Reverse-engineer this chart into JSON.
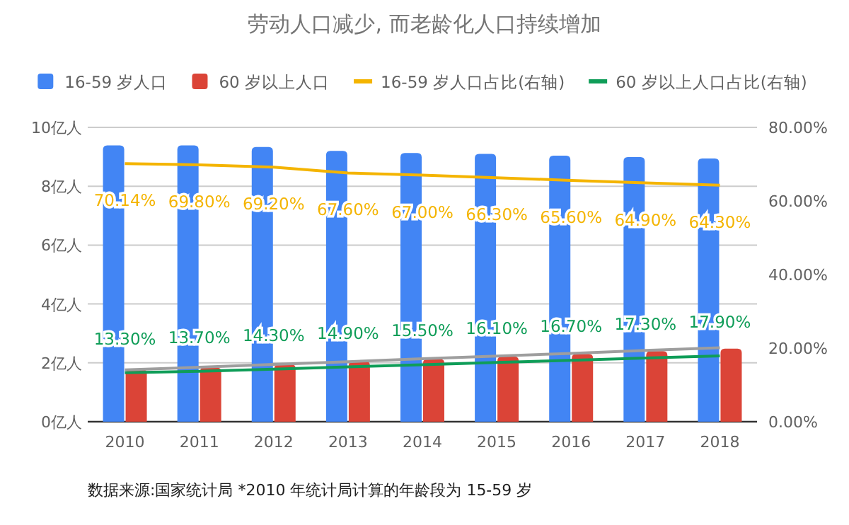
{
  "chart_data": {
    "type": "bar",
    "title": "劳动人口减少, 而老龄化人口持续增加",
    "categories": [
      "2010",
      "2011",
      "2012",
      "2013",
      "2014",
      "2015",
      "2016",
      "2017",
      "2018"
    ],
    "series": [
      {
        "name": "16-59 岁人口",
        "color": "#4285f4",
        "values": [
          9.39,
          9.39,
          9.33,
          9.2,
          9.13,
          9.1,
          9.04,
          8.99,
          8.94
        ]
      },
      {
        "name": "60 岁以上人口",
        "color": "#db4437",
        "values": [
          1.78,
          1.84,
          1.95,
          2.05,
          2.13,
          2.21,
          2.3,
          2.4,
          2.48
        ]
      },
      {
        "name": "16-59 岁人口占比(右轴)",
        "type": "line",
        "axis": "y2",
        "color": "#f4b400",
        "values": [
          70.14,
          69.8,
          69.2,
          67.6,
          67.0,
          66.3,
          65.6,
          64.9,
          64.3
        ],
        "value_labels": [
          "70.14%",
          "69.80%",
          "69.20%",
          "67.60%",
          "67.00%",
          "66.30%",
          "65.60%",
          "64.90%",
          "64.30%"
        ]
      },
      {
        "name": "60 岁以上人口占比(右轴)",
        "type": "line",
        "axis": "y2",
        "color": "#0f9d58",
        "values": [
          13.3,
          13.7,
          14.3,
          14.9,
          15.5,
          16.1,
          16.7,
          17.3,
          17.9
        ],
        "value_labels": [
          "13.30%",
          "13.70%",
          "14.30%",
          "14.90%",
          "15.50%",
          "16.10%",
          "16.70%",
          "17.30%",
          "17.90%"
        ]
      },
      {
        "type": "line",
        "color": "#9e9e9e",
        "values": [
          1.76,
          1.85,
          1.95,
          2.04,
          2.14,
          2.23,
          2.32,
          2.42,
          2.51
        ]
      }
    ],
    "ylim": [
      0,
      10
    ],
    "yticks": [
      {
        "value": 0,
        "label": "0亿人"
      },
      {
        "value": 2,
        "label": "2亿人"
      },
      {
        "value": 4,
        "label": "4亿人"
      },
      {
        "value": 6,
        "label": "6亿人"
      },
      {
        "value": 8,
        "label": "8亿人"
      },
      {
        "value": 10,
        "label": "10亿人"
      }
    ],
    "y2lim": [
      0,
      80
    ],
    "y2ticks": [
      {
        "value": 0,
        "label": "0.00%"
      },
      {
        "value": 20,
        "label": "20.00%"
      },
      {
        "value": 40,
        "label": "40.00%"
      },
      {
        "value": 60,
        "label": "60.00%"
      },
      {
        "value": 80,
        "label": "80.00%"
      }
    ],
    "grid": "y",
    "legend": "top",
    "annotations": [
      "数据来源:国家统计局  *2010 年统计局计算的年龄段为 15-59 岁"
    ]
  }
}
